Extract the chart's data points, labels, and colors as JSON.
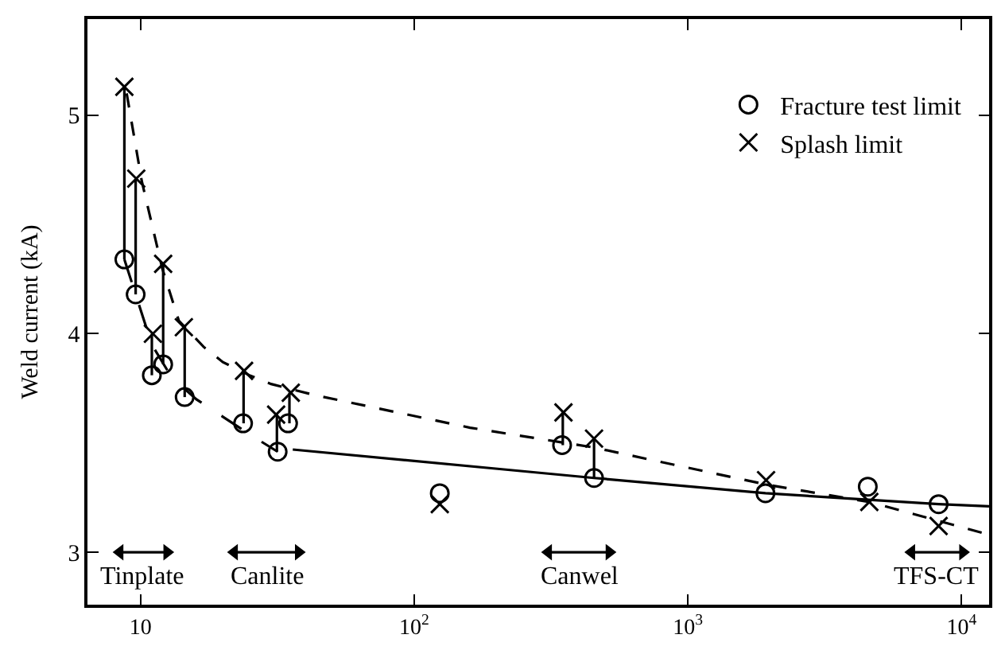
{
  "chart_data": {
    "type": "scatter",
    "ylabel": "Weld current (kA)",
    "log": "x",
    "legend": "top right",
    "xlim": [
      6.4,
      12600
    ],
    "ylim": [
      2.76,
      5.44
    ],
    "xticks": [
      {
        "value": 10,
        "label": "10"
      },
      {
        "value": 100,
        "label": "10$^{2}$"
      },
      {
        "value": 1000,
        "label": "10$^{3}$"
      },
      {
        "value": 10000,
        "label": "10$^{4}$"
      }
    ],
    "yticks": [
      3,
      4,
      5
    ],
    "series": [
      {
        "type": "line",
        "color": "#000000",
        "line_style": "solid",
        "marker": "none",
        "x": [
          8.73,
          8.73
        ],
        "values": [
          4.34,
          5.13
        ]
      },
      {
        "type": "line",
        "color": "#000000",
        "line_style": "solid",
        "marker": "none",
        "x": [
          9.6,
          9.6
        ],
        "values": [
          4.18,
          4.71
        ]
      },
      {
        "type": "line",
        "color": "#000000",
        "line_style": "solid",
        "marker": "none",
        "x": [
          11.0,
          11.0
        ],
        "values": [
          3.81,
          4.0
        ]
      },
      {
        "type": "line",
        "color": "#000000",
        "line_style": "solid",
        "marker": "none",
        "x": [
          12.1,
          12.1
        ],
        "values": [
          3.86,
          4.32
        ]
      },
      {
        "type": "line",
        "color": "#000000",
        "line_style": "solid",
        "marker": "none",
        "x": [
          14.5,
          14.5
        ],
        "values": [
          3.71,
          4.03
        ]
      },
      {
        "type": "line",
        "color": "#000000",
        "line_style": "solid",
        "marker": "none",
        "x": [
          23.8,
          23.8
        ],
        "values": [
          3.59,
          3.83
        ]
      },
      {
        "type": "line",
        "color": "#000000",
        "line_style": "solid",
        "marker": "none",
        "x": [
          31.5,
          31.5
        ],
        "values": [
          3.46,
          3.63
        ]
      },
      {
        "type": "line",
        "color": "#000000",
        "line_style": "solid",
        "marker": "none",
        "x": [
          35.0,
          35.0
        ],
        "values": [
          3.59,
          3.73
        ]
      },
      {
        "type": "line",
        "color": "#000000",
        "line_style": "solid",
        "marker": "none",
        "x": [
          349,
          349
        ],
        "values": [
          3.49,
          3.64
        ]
      },
      {
        "type": "line",
        "color": "#000000",
        "line_style": "solid",
        "marker": "none",
        "x": [
          454,
          454
        ],
        "values": [
          3.34,
          3.52
        ]
      },
      {
        "type": "line",
        "color": "#000000",
        "line_style": "dashed",
        "marker": "none",
        "x": [
          8.73,
          9.6,
          11,
          13,
          16,
          20,
          25,
          31.7
        ],
        "values": [
          4.34,
          4.18,
          3.95,
          3.8,
          3.7,
          3.62,
          3.54,
          3.46
        ]
      },
      {
        "type": "line",
        "color": "#000000",
        "line_style": "solid",
        "marker": "none",
        "x": [
          36,
          209,
          454,
          1920,
          8240,
          12600
        ],
        "values": [
          3.47,
          3.38,
          3.34,
          3.27,
          3.22,
          3.21
        ]
      },
      {
        "type": "line",
        "color": "#000000",
        "line_style": "dotted",
        "marker": "none",
        "x": [
          8.9,
          10.1,
          12,
          13.8,
          17,
          20,
          25,
          30,
          43,
          160,
          450,
          1930,
          4600,
          12600
        ],
        "values": [
          5.1,
          4.7,
          4.3,
          4.06,
          3.94,
          3.87,
          3.81,
          3.77,
          3.72,
          3.57,
          3.48,
          3.31,
          3.23,
          3.08
        ]
      },
      {
        "type": "line",
        "color": "#000000",
        "line_style": "solid",
        "marker": "triangle",
        "x": [
          8.4,
          12.5
        ],
        "values": [
          3.0,
          3.0
        ]
      },
      {
        "type": "line",
        "color": "#000000",
        "line_style": "solid",
        "marker": "triangle",
        "x": [
          22,
          37.8
        ],
        "values": [
          3.0,
          3.0
        ]
      },
      {
        "type": "line",
        "color": "#000000",
        "line_style": "solid",
        "marker": "triangle",
        "x": [
          309,
          516
        ],
        "values": [
          3.0,
          3.0
        ]
      },
      {
        "type": "line",
        "color": "#000000",
        "line_style": "solid",
        "marker": "triangle",
        "x": [
          6560,
          10100
        ],
        "values": [
          3.0,
          3.0
        ]
      },
      {
        "name": "Fracture test limit",
        "marker": "circle",
        "color": "#000000",
        "x": [
          8.73,
          9.6,
          11.0,
          12.1,
          14.5,
          23.7,
          31.7,
          34.6,
          124,
          347,
          454,
          1920,
          4540,
          8240
        ],
        "values": [
          4.34,
          4.18,
          3.81,
          3.86,
          3.71,
          3.59,
          3.46,
          3.59,
          3.27,
          3.49,
          3.34,
          3.27,
          3.3,
          3.22
        ]
      },
      {
        "name": "Splash limit",
        "marker": "cross",
        "color": "#000000",
        "x": [
          8.73,
          9.65,
          11.1,
          12.1,
          14.4,
          23.9,
          31.3,
          35.4,
          124,
          351,
          454,
          1930,
          4600,
          8240
        ],
        "values": [
          5.13,
          4.71,
          4.0,
          4.32,
          4.03,
          3.83,
          3.63,
          3.73,
          3.22,
          3.64,
          3.52,
          3.33,
          3.23,
          3.12
        ]
      }
    ],
    "annotations": [
      {
        "text": "Tinplate",
        "x": 10.2,
        "y": 3.0
      },
      {
        "text": "Canlite",
        "x": 29,
        "y": 3.0
      },
      {
        "text": "Canwel",
        "x": 400,
        "y": 3.0
      },
      {
        "text": "TFS-CT",
        "x": 8100,
        "y": 3.0
      }
    ]
  }
}
